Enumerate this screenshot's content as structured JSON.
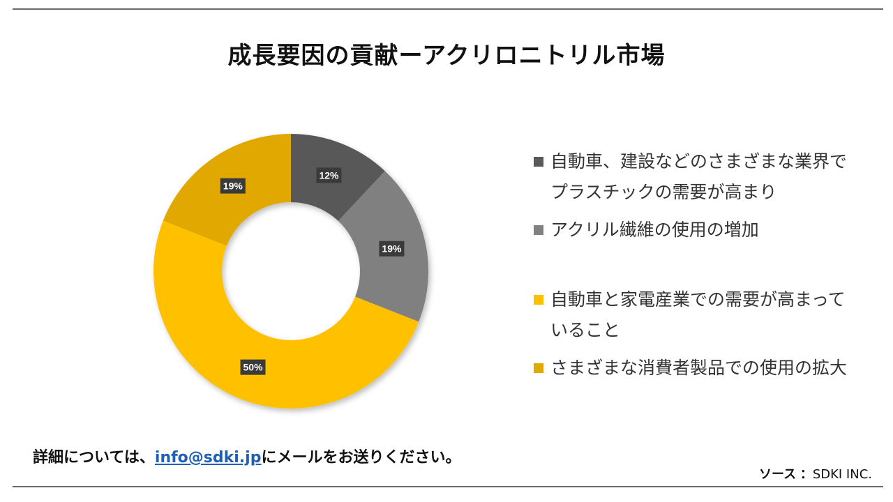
{
  "title": "成長要因の貢献ーアクリロニトリル市場",
  "chart_data": {
    "type": "pie",
    "donut": true,
    "categories": [
      "自動車、建設などのさまざまな業界でプラスチックの需要が高まり",
      "アクリル繊維の使用の増加",
      "自動車と家電産業での需要が高まっていること",
      "さまざまな消費者製品での使用の拡大"
    ],
    "values": [
      12,
      19,
      50,
      19
    ],
    "data_labels": [
      "12%",
      "19%",
      "50%",
      "19%"
    ],
    "colors": [
      "#595959",
      "#808080",
      "#ffc000",
      "#e0a800"
    ],
    "legend_position": "right"
  },
  "legend": {
    "items": [
      {
        "label": "自動車、建設などのさまざまな業界でプラスチックの需要が高まり",
        "color": "#595959"
      },
      {
        "label": "アクリル繊維の使用の増加",
        "color": "#808080"
      },
      {
        "label": "自動車と家電産業での需要が高まっていること",
        "color": "#ffc000"
      },
      {
        "label": "さまざまな消費者製品での使用の拡大",
        "color": "#e0a800"
      }
    ]
  },
  "footer": {
    "contact_prefix": "詳細については、",
    "contact_email": "info@sdki.jp",
    "contact_suffix": "にメールをお送りください。",
    "source_label": "ソース",
    "source_sep": "：",
    "source_value": "SDKI INC."
  }
}
